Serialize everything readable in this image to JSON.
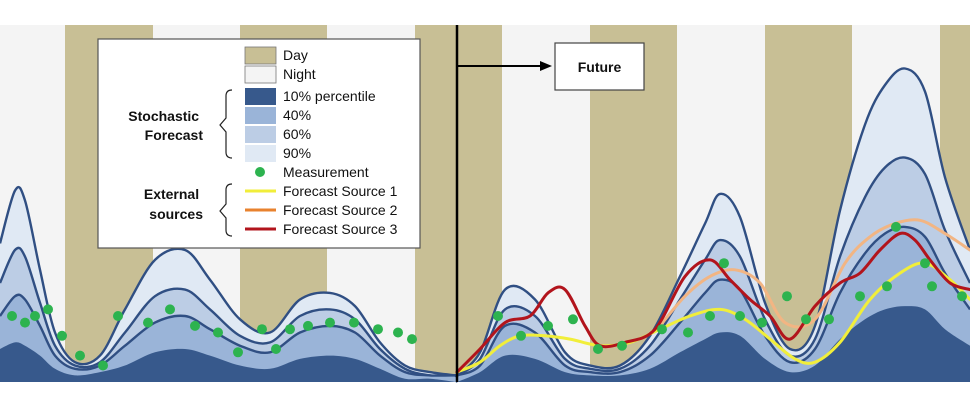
{
  "chart_data": {
    "type": "area",
    "x_range": [
      0,
      970
    ],
    "y_range": [
      0,
      1
    ],
    "now_x": 457,
    "colors": {
      "day": "#c8bf95",
      "night": "#f4f4f4",
      "band_10": "#e0e9f4",
      "band_40": "#bccde5",
      "band_60": "#9ab4d8",
      "band_90": "#37598c",
      "outline": "#304f83",
      "measurement": "#2db34f",
      "forecast_1": "#f1ee3a",
      "forecast_2": "#f2b583",
      "forecast_3": "#b2141c"
    },
    "day_intervals": [
      [
        65,
        153
      ],
      [
        240,
        327
      ],
      [
        415,
        502
      ],
      [
        590,
        677
      ],
      [
        765,
        852
      ],
      [
        940,
        970
      ]
    ],
    "bands": [
      {
        "name": "10% percentile",
        "x": [
          0,
          15,
          25,
          40,
          55,
          75,
          100,
          125,
          155,
          185,
          210,
          240,
          270,
          300,
          330,
          355,
          380,
          405,
          430,
          456,
          457,
          480,
          505,
          535,
          565,
          590,
          620,
          650,
          680,
          705,
          720,
          740,
          765,
          790,
          815,
          840,
          865,
          885,
          905,
          925,
          945,
          970
        ],
        "values": [
          0.42,
          0.58,
          0.55,
          0.34,
          0.15,
          0.06,
          0.08,
          0.22,
          0.37,
          0.4,
          0.31,
          0.19,
          0.15,
          0.25,
          0.27,
          0.23,
          0.12,
          0.05,
          0.03,
          0.02,
          0.02,
          0.09,
          0.28,
          0.25,
          0.09,
          0.05,
          0.05,
          0.14,
          0.32,
          0.48,
          0.57,
          0.5,
          0.24,
          0.1,
          0.17,
          0.52,
          0.78,
          0.9,
          0.95,
          0.88,
          0.62,
          0.4
        ]
      },
      {
        "name": "40%",
        "x": [
          0,
          15,
          25,
          40,
          55,
          75,
          100,
          125,
          155,
          185,
          210,
          240,
          270,
          300,
          330,
          355,
          380,
          405,
          430,
          456,
          457,
          480,
          505,
          535,
          565,
          590,
          620,
          650,
          680,
          705,
          720,
          740,
          765,
          790,
          815,
          840,
          865,
          885,
          905,
          925,
          945,
          970
        ],
        "values": [
          0.3,
          0.4,
          0.38,
          0.24,
          0.11,
          0.05,
          0.06,
          0.15,
          0.26,
          0.28,
          0.22,
          0.14,
          0.12,
          0.2,
          0.22,
          0.19,
          0.1,
          0.04,
          0.02,
          0.02,
          0.02,
          0.07,
          0.22,
          0.2,
          0.07,
          0.04,
          0.04,
          0.11,
          0.25,
          0.37,
          0.43,
          0.38,
          0.19,
          0.08,
          0.13,
          0.38,
          0.56,
          0.65,
          0.68,
          0.63,
          0.46,
          0.3
        ]
      },
      {
        "name": "60%",
        "x": [
          0,
          15,
          25,
          40,
          55,
          75,
          100,
          125,
          155,
          185,
          210,
          240,
          270,
          300,
          330,
          355,
          380,
          405,
          430,
          456,
          457,
          480,
          505,
          535,
          565,
          590,
          620,
          650,
          680,
          705,
          720,
          740,
          765,
          790,
          815,
          840,
          865,
          885,
          905,
          925,
          945,
          970
        ],
        "values": [
          0.2,
          0.26,
          0.25,
          0.17,
          0.08,
          0.04,
          0.05,
          0.11,
          0.18,
          0.2,
          0.16,
          0.11,
          0.09,
          0.15,
          0.17,
          0.15,
          0.08,
          0.03,
          0.02,
          0.02,
          0.02,
          0.05,
          0.17,
          0.15,
          0.05,
          0.03,
          0.03,
          0.08,
          0.18,
          0.27,
          0.31,
          0.28,
          0.14,
          0.06,
          0.1,
          0.27,
          0.39,
          0.45,
          0.47,
          0.44,
          0.33,
          0.22
        ]
      },
      {
        "name": "90%",
        "x": [
          0,
          15,
          25,
          40,
          55,
          75,
          100,
          125,
          155,
          185,
          210,
          240,
          270,
          300,
          330,
          355,
          380,
          405,
          430,
          456,
          457,
          480,
          505,
          535,
          565,
          590,
          620,
          650,
          680,
          705,
          720,
          740,
          765,
          790,
          815,
          840,
          865,
          885,
          905,
          925,
          945,
          970
        ],
        "values": [
          0.1,
          0.12,
          0.11,
          0.08,
          0.04,
          0.02,
          0.03,
          0.05,
          0.09,
          0.1,
          0.08,
          0.05,
          0.04,
          0.07,
          0.08,
          0.07,
          0.04,
          0.01,
          0.01,
          0.0,
          0.0,
          0.03,
          0.08,
          0.07,
          0.03,
          0.02,
          0.02,
          0.04,
          0.09,
          0.13,
          0.15,
          0.14,
          0.07,
          0.03,
          0.05,
          0.13,
          0.19,
          0.22,
          0.23,
          0.22,
          0.16,
          0.11
        ]
      }
    ],
    "measurements": [
      [
        12,
        0.2
      ],
      [
        25,
        0.18
      ],
      [
        35,
        0.2
      ],
      [
        48,
        0.22
      ],
      [
        62,
        0.14
      ],
      [
        80,
        0.08
      ],
      [
        103,
        0.05
      ],
      [
        118,
        0.2
      ],
      [
        148,
        0.18
      ],
      [
        170,
        0.22
      ],
      [
        195,
        0.17
      ],
      [
        218,
        0.15
      ],
      [
        238,
        0.09
      ],
      [
        262,
        0.16
      ],
      [
        276,
        0.1
      ],
      [
        290,
        0.16
      ],
      [
        308,
        0.17
      ],
      [
        330,
        0.18
      ],
      [
        354,
        0.18
      ],
      [
        378,
        0.16
      ],
      [
        398,
        0.15
      ],
      [
        412,
        0.13
      ],
      [
        498,
        0.2
      ],
      [
        521,
        0.14
      ],
      [
        548,
        0.17
      ],
      [
        573,
        0.19
      ],
      [
        598,
        0.1
      ],
      [
        622,
        0.11
      ],
      [
        662,
        0.16
      ],
      [
        688,
        0.15
      ],
      [
        710,
        0.2
      ],
      [
        724,
        0.36
      ],
      [
        740,
        0.2
      ],
      [
        762,
        0.18
      ],
      [
        787,
        0.26
      ],
      [
        806,
        0.19
      ],
      [
        829,
        0.19
      ],
      [
        860,
        0.26
      ],
      [
        887,
        0.29
      ],
      [
        896,
        0.47
      ],
      [
        925,
        0.36
      ],
      [
        932,
        0.29
      ],
      [
        962,
        0.26
      ]
    ],
    "forecast_sources": [
      {
        "name": "Forecast Source 1",
        "x": [
          457,
          480,
          500,
          520,
          545,
          570,
          600,
          630,
          660,
          690,
          720,
          745,
          770,
          795,
          815,
          840,
          870,
          900,
          925,
          950,
          970
        ],
        "values": [
          0.03,
          0.06,
          0.11,
          0.14,
          0.14,
          0.13,
          0.11,
          0.12,
          0.16,
          0.2,
          0.22,
          0.19,
          0.13,
          0.07,
          0.06,
          0.12,
          0.25,
          0.33,
          0.36,
          0.31,
          0.25
        ]
      },
      {
        "name": "Forecast Source 2",
        "x": [
          660,
          685,
          710,
          735,
          760,
          785,
          815,
          845,
          870,
          895,
          920,
          945,
          970
        ],
        "values": [
          0.17,
          0.26,
          0.32,
          0.34,
          0.3,
          0.18,
          0.19,
          0.36,
          0.44,
          0.48,
          0.49,
          0.45,
          0.4
        ]
      },
      {
        "name": "Forecast Source 3",
        "x": [
          457,
          480,
          505,
          530,
          548,
          565,
          585,
          600,
          625,
          655,
          685,
          710,
          730,
          750,
          770,
          790,
          815,
          840,
          860,
          880,
          900,
          915,
          930,
          950,
          970
        ],
        "values": [
          0.03,
          0.1,
          0.18,
          0.2,
          0.27,
          0.28,
          0.17,
          0.11,
          0.12,
          0.16,
          0.32,
          0.37,
          0.31,
          0.25,
          0.2,
          0.13,
          0.23,
          0.3,
          0.33,
          0.4,
          0.45,
          0.43,
          0.37,
          0.3,
          0.28
        ]
      }
    ],
    "legend": {
      "items": [
        "Day",
        "Night",
        "10% percentile",
        "40%",
        "60%",
        "90%",
        "Measurement",
        "Forecast Source 1",
        "Forecast Source 2",
        "Forecast Source 3"
      ],
      "group_stochastic": [
        "Stochastic",
        "Forecast"
      ],
      "group_external": [
        "External",
        "sources"
      ],
      "placement": "top-left"
    },
    "annotation": "Future"
  }
}
